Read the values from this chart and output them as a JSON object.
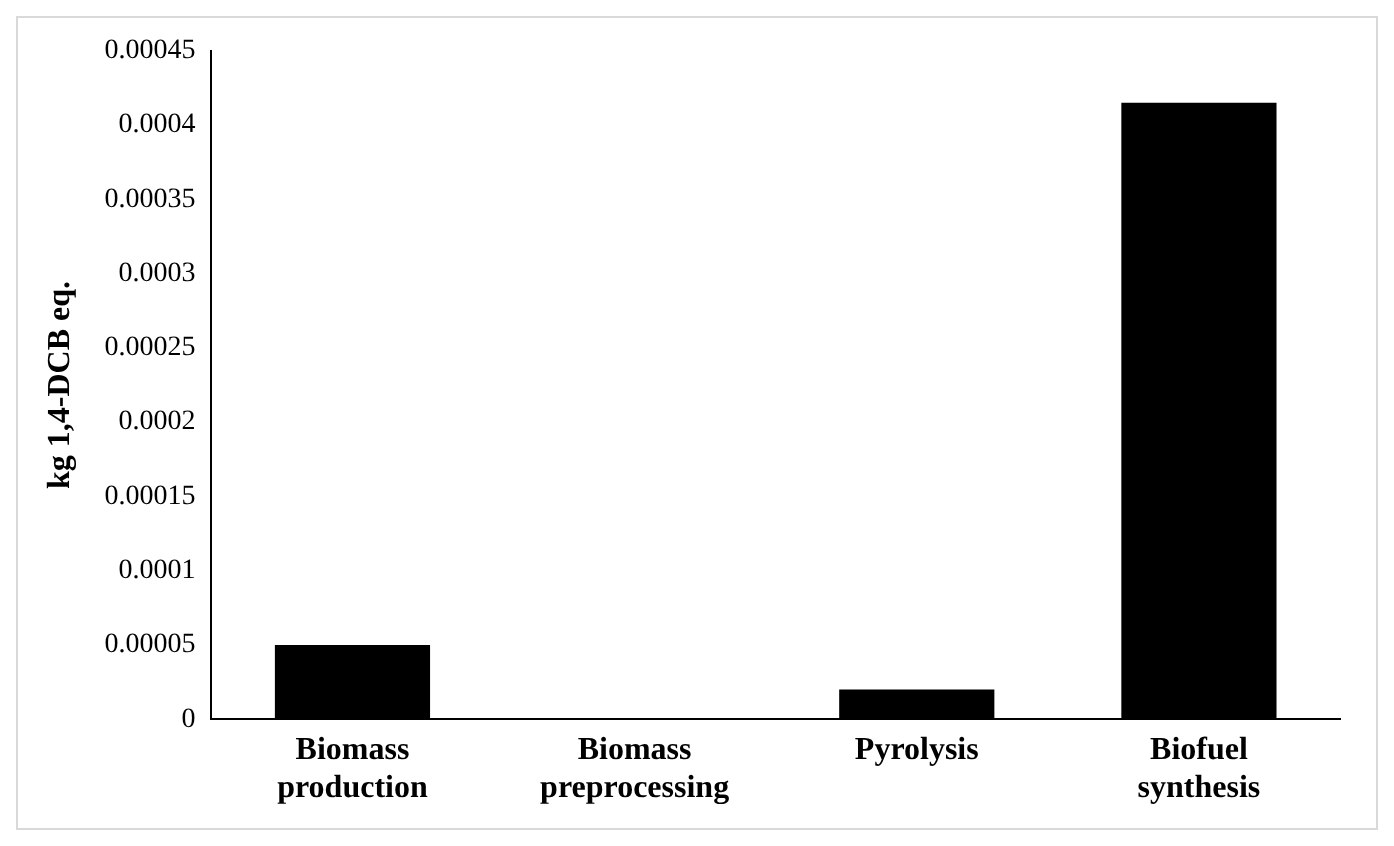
{
  "chart_data": {
    "type": "bar",
    "ylabel": "kg 1,4-DCB eq.",
    "categories": [
      "Biomass production",
      "Biomass preprocessing",
      "Pyrolysis",
      "Biofuel synthesis"
    ],
    "values": [
      5e-05,
      0,
      2e-05,
      0.000415
    ],
    "color": "#000000",
    "ylim": [
      0,
      0.00045
    ],
    "yticks": [
      0,
      {
        "value": 5e-05,
        "label": "0.00005"
      },
      0.0001,
      0.00015,
      0.0002,
      0.00025,
      0.0003,
      0.00035,
      0.0004,
      0.00045
    ],
    "grid": false,
    "legend": false
  }
}
